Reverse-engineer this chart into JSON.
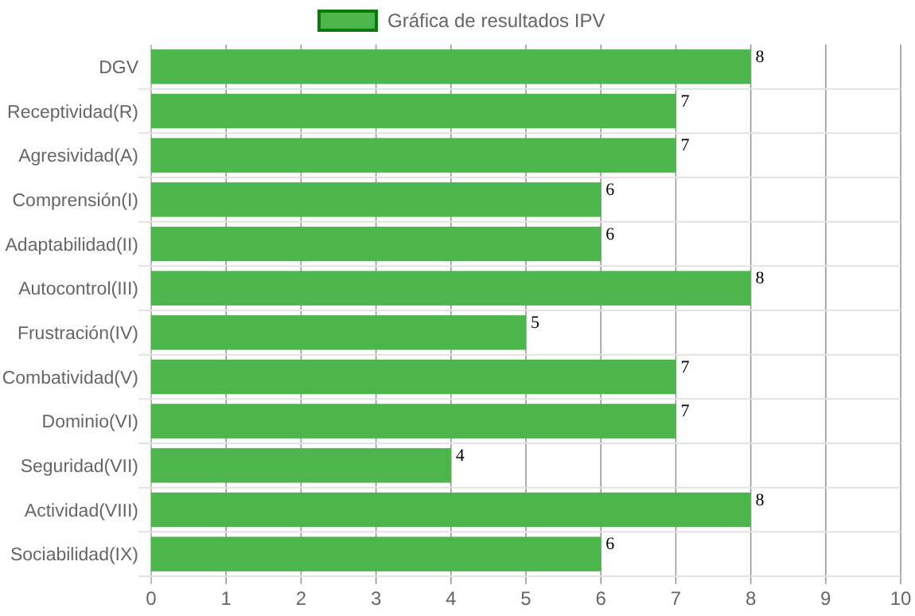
{
  "chart_data": {
    "type": "bar",
    "orientation": "horizontal",
    "categories": [
      "DGV",
      "Receptividad(R)",
      "Agresividad(A)",
      "Comprensión(I)",
      "Adaptabilidad(II)",
      "Autocontrol(III)",
      "Frustración(IV)",
      "Combatividad(V)",
      "Dominio(VI)",
      "Seguridad(VII)",
      "Actividad(VIII)",
      "Sociabilidad(IX)"
    ],
    "series": [
      {
        "name": "Gráfica de resultados IPV",
        "color": "#4cb54c",
        "values": [
          8,
          7,
          7,
          6,
          6,
          8,
          5,
          7,
          7,
          4,
          8,
          6
        ]
      }
    ],
    "xlim": [
      0,
      10
    ],
    "xticks": [
      0,
      1,
      2,
      3,
      4,
      5,
      6,
      7,
      8,
      9,
      10
    ],
    "grid": true,
    "legend": "top",
    "data_labels": true
  }
}
